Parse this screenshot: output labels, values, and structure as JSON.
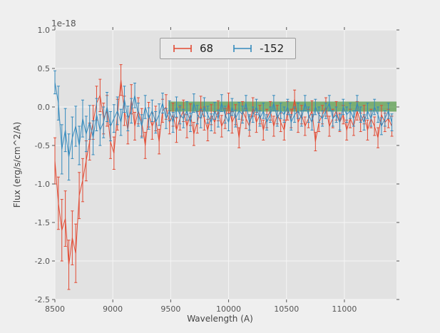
{
  "chart_data": {
    "type": "line",
    "mode": "errorbar",
    "title": "",
    "xlabel": "Wavelength (A)",
    "ylabel": "Flux (erg/s/cm^2/A)",
    "offset_text": "1e-18",
    "xlim": [
      8500,
      11450
    ],
    "ylim": [
      -2.5,
      1.0
    ],
    "xticks": [
      8500,
      9000,
      9500,
      10000,
      10500,
      11000
    ],
    "yticks": [
      -2.5,
      -2.0,
      -1.5,
      -1.0,
      -0.5,
      0.0,
      0.5,
      1.0
    ],
    "grid": true,
    "legend_position": "upper center",
    "x_start": 8500,
    "x_step": 30,
    "n_points": 98,
    "band": {
      "name": "zero-flux-band",
      "x0": 9480,
      "x1": 11450,
      "y0": -0.06,
      "y1": 0.07,
      "color": "rgba(56,140,40,0.6)"
    },
    "style": {
      "fig_bg": "#efefef",
      "plot_bg": "#e2e2e2",
      "grid_color": "#f5f5f5",
      "tick_color": "#555555",
      "legend_bg": "#eaeaea",
      "legend_border": "#9a9a9a"
    },
    "series": [
      {
        "name": "68",
        "color": "#E24A33",
        "y": [
          -0.7,
          -1.25,
          -1.6,
          -1.45,
          -2.05,
          -1.7,
          -1.9,
          -1.15,
          -0.95,
          -0.7,
          -0.45,
          -0.2,
          0.05,
          0.15,
          -0.15,
          -0.05,
          -0.45,
          -0.6,
          -0.1,
          0.35,
          -0.05,
          -0.3,
          0.1,
          -0.25,
          -0.05,
          -0.2,
          -0.5,
          -0.1,
          -0.25,
          -0.15,
          -0.45,
          -0.05,
          0.0,
          -0.2,
          -0.1,
          -0.3,
          -0.15,
          -0.05,
          -0.25,
          -0.1,
          -0.35,
          -0.2,
          0.0,
          -0.15,
          -0.3,
          -0.1,
          -0.2,
          -0.05,
          -0.25,
          -0.15,
          0.05,
          -0.2,
          -0.1,
          -0.4,
          -0.05,
          -0.15,
          -0.25,
          0.0,
          -0.2,
          -0.1,
          -0.3,
          -0.15,
          -0.05,
          -0.25,
          -0.1,
          -0.2,
          -0.3,
          -0.05,
          -0.15,
          0.1,
          -0.2,
          -0.1,
          -0.25,
          -0.15,
          -0.05,
          -0.45,
          -0.2,
          -0.1,
          0.0,
          -0.25,
          -0.15,
          -0.05,
          -0.2,
          -0.1,
          -0.3,
          -0.15,
          -0.25,
          -0.05,
          -0.2,
          -0.1,
          -0.3,
          -0.15,
          -0.25,
          -0.4,
          -0.1,
          -0.2,
          -0.15,
          -0.25
        ],
        "yerr": [
          0.3,
          0.34,
          0.4,
          0.36,
          0.32,
          0.35,
          0.38,
          0.3,
          0.28,
          0.26,
          0.24,
          0.22,
          0.22,
          0.21,
          0.2,
          0.2,
          0.22,
          0.21,
          0.2,
          0.2,
          0.19,
          0.18,
          0.19,
          0.18,
          0.17,
          0.18,
          0.17,
          0.16,
          0.17,
          0.16,
          0.16,
          0.15,
          0.16,
          0.15,
          0.15,
          0.16,
          0.15,
          0.14,
          0.15,
          0.14,
          0.15,
          0.14,
          0.14,
          0.15,
          0.14,
          0.13,
          0.14,
          0.13,
          0.14,
          0.13,
          0.13,
          0.14,
          0.13,
          0.13,
          0.12,
          0.13,
          0.13,
          0.12,
          0.13,
          0.12,
          0.13,
          0.12,
          0.12,
          0.13,
          0.12,
          0.12,
          0.13,
          0.12,
          0.12,
          0.12,
          0.13,
          0.12,
          0.12,
          0.12,
          0.13,
          0.12,
          0.12,
          0.12,
          0.12,
          0.13,
          0.12,
          0.12,
          0.12,
          0.12,
          0.13,
          0.12,
          0.12,
          0.12,
          0.12,
          0.12,
          0.13,
          0.12,
          0.12,
          0.13,
          0.12,
          0.12,
          0.12,
          0.13
        ]
      },
      {
        "name": "-152",
        "color": "#348ABD",
        "y": [
          0.32,
          0.05,
          -0.55,
          -0.3,
          -0.65,
          -0.4,
          -0.25,
          -0.5,
          -0.15,
          -0.35,
          -0.2,
          -0.4,
          -0.1,
          -0.3,
          -0.2,
          0.0,
          -0.25,
          -0.15,
          -0.05,
          -0.2,
          0.1,
          -0.15,
          -0.05,
          0.15,
          -0.1,
          -0.25,
          0.0,
          -0.15,
          -0.05,
          -0.2,
          -0.1,
          0.05,
          -0.15,
          -0.05,
          -0.2,
          0.0,
          -0.1,
          -0.15,
          -0.05,
          -0.2,
          0.05,
          -0.1,
          -0.15,
          0.0,
          -0.1,
          -0.2,
          -0.05,
          -0.15,
          0.05,
          -0.1,
          -0.2,
          0.0,
          -0.15,
          -0.05,
          -0.1,
          0.05,
          -0.2,
          -0.1,
          0.0,
          -0.15,
          -0.05,
          -0.2,
          -0.1,
          0.05,
          -0.15,
          -0.05,
          -0.1,
          0.0,
          -0.2,
          -0.1,
          -0.05,
          -0.15,
          0.05,
          -0.1,
          -0.2,
          0.0,
          -0.1,
          -0.15,
          -0.05,
          0.05,
          -0.15,
          -0.1,
          -0.2,
          0.0,
          -0.1,
          -0.05,
          -0.15,
          0.05,
          -0.1,
          -0.2,
          -0.05,
          -0.15,
          0.0,
          -0.1,
          -0.25,
          -0.15,
          -0.05,
          -0.2
        ],
        "yerr": [
          0.15,
          0.22,
          0.32,
          0.28,
          0.3,
          0.27,
          0.26,
          0.25,
          0.24,
          0.23,
          0.22,
          0.22,
          0.21,
          0.2,
          0.2,
          0.19,
          0.19,
          0.18,
          0.18,
          0.17,
          0.17,
          0.16,
          0.16,
          0.16,
          0.15,
          0.15,
          0.15,
          0.14,
          0.14,
          0.14,
          0.14,
          0.13,
          0.13,
          0.13,
          0.13,
          0.13,
          0.12,
          0.12,
          0.12,
          0.12,
          0.12,
          0.12,
          0.12,
          0.12,
          0.11,
          0.11,
          0.11,
          0.11,
          0.11,
          0.11,
          0.11,
          0.11,
          0.11,
          0.11,
          0.11,
          0.1,
          0.1,
          0.1,
          0.1,
          0.1,
          0.1,
          0.1,
          0.1,
          0.1,
          0.1,
          0.1,
          0.1,
          0.1,
          0.1,
          0.1,
          0.1,
          0.1,
          0.1,
          0.1,
          0.1,
          0.1,
          0.1,
          0.1,
          0.1,
          0.1,
          0.1,
          0.1,
          0.1,
          0.1,
          0.1,
          0.1,
          0.1,
          0.1,
          0.1,
          0.1,
          0.1,
          0.1,
          0.1,
          0.1,
          0.11,
          0.1,
          0.1,
          0.11
        ]
      }
    ]
  }
}
